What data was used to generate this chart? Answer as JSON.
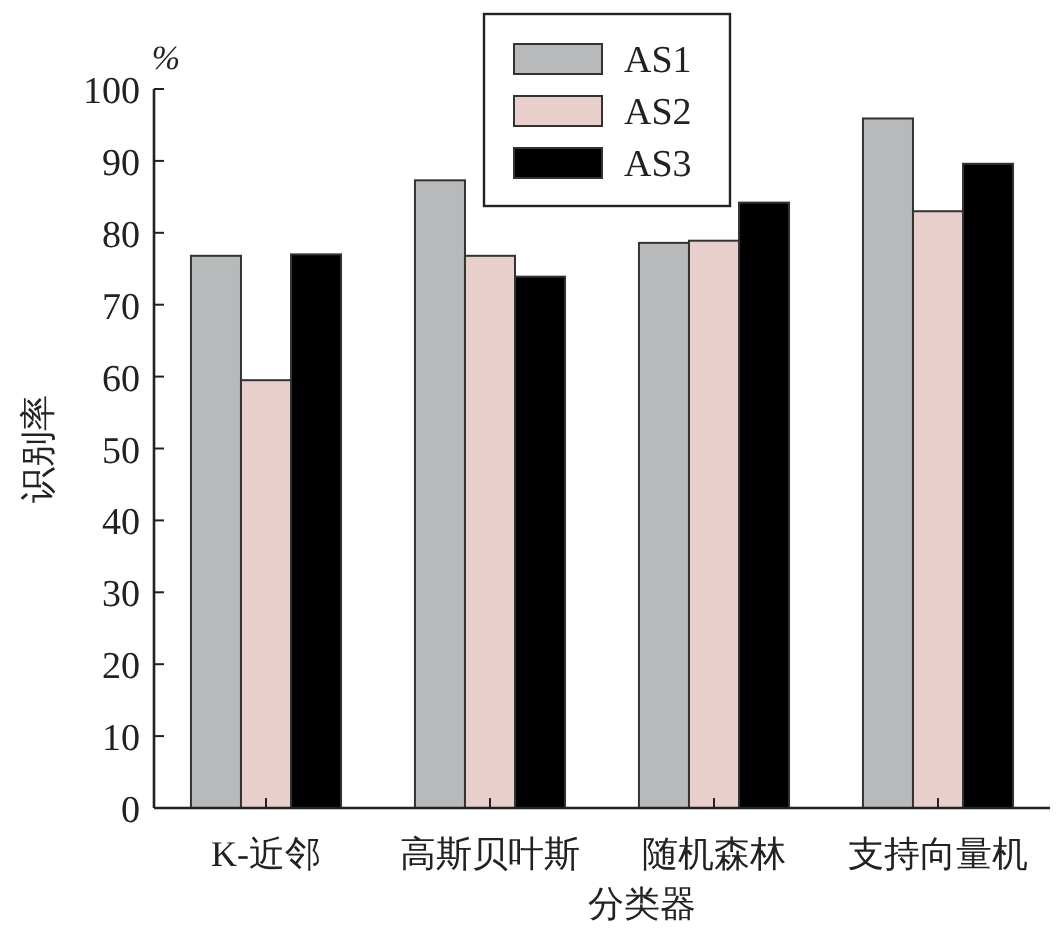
{
  "chart_data": {
    "type": "bar",
    "categories": [
      "K-近邻",
      "高斯贝叶斯",
      "随机森林",
      "支持向量机"
    ],
    "series": [
      {
        "name": "AS1",
        "color": "#b8b9bb",
        "values": [
          76.8,
          87.3,
          78.6,
          95.9
        ]
      },
      {
        "name": "AS2",
        "color": "#e9cfcb",
        "values": [
          59.5,
          76.8,
          78.9,
          83.0
        ]
      },
      {
        "name": "AS3",
        "color": "#000000",
        "values": [
          77.0,
          73.9,
          84.2,
          89.6
        ]
      }
    ],
    "xlabel": "分类器",
    "ylabel": "识别率",
    "annotations": [
      "%"
    ],
    "ylim": [
      0,
      100
    ],
    "yticks": [
      0,
      10,
      20,
      30,
      40,
      50,
      60,
      70,
      80,
      90,
      100
    ],
    "grid": false,
    "legend": "top"
  }
}
